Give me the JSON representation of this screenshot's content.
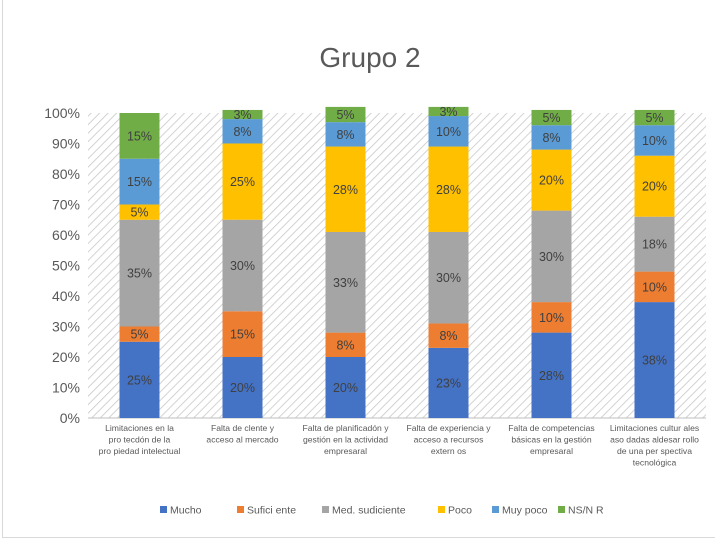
{
  "chart_data": {
    "type": "bar",
    "stacked": "percent",
    "title": "Grupo 2",
    "xlabel": "",
    "ylabel": "",
    "ylim": [
      0,
      100
    ],
    "yticks": [
      "0%",
      "10%",
      "20%",
      "30%",
      "40%",
      "50%",
      "60%",
      "70%",
      "80%",
      "90%",
      "100%"
    ],
    "categories": [
      [
        "Limitaciones en la",
        "pro tecdón de la",
        "pro piedad intelectual"
      ],
      [
        "Falta de clente y",
        "acceso al mercado"
      ],
      [
        "Falta de planificadón y",
        "gestión en la actividad",
        "empresaral"
      ],
      [
        "Falta de experiencia y",
        "acceso a recursos",
        "extern os"
      ],
      [
        "Falta de competencias",
        "básicas en la gestión",
        "empresaral"
      ],
      [
        "Limitaciones cultur ales",
        "aso dadas aldesar rollo",
        "de una per spectiva",
        "tecnológica"
      ]
    ],
    "series": [
      {
        "name": "Mucho",
        "color": "#4472c4",
        "values": [
          25,
          20,
          20,
          23,
          28,
          38
        ],
        "labels": [
          "25%",
          "20%",
          "20%",
          "23%",
          "28%",
          "38%"
        ]
      },
      {
        "name": "Sufici ente",
        "color": "#ed7d31",
        "values": [
          5,
          15,
          8,
          8,
          10,
          10
        ],
        "labels": [
          "5%",
          "15%",
          "8%",
          "8%",
          "10%",
          "10%"
        ]
      },
      {
        "name": "Med. sudiciente",
        "color": "#a5a5a5",
        "values": [
          35,
          30,
          33,
          30,
          30,
          18
        ],
        "labels": [
          "35%",
          "30%",
          "33%",
          "30%",
          "30%",
          "18%"
        ]
      },
      {
        "name": "Poco",
        "color": "#ffc000",
        "values": [
          5,
          25,
          28,
          28,
          20,
          20
        ],
        "labels": [
          "5%",
          "25%",
          "28%",
          "28%",
          "20%",
          "20%"
        ]
      },
      {
        "name": "Muy poco",
        "color": "#5b9bd5",
        "values": [
          15,
          8,
          8,
          10,
          8,
          10
        ],
        "labels": [
          "15%",
          "8%",
          "8%",
          "10%",
          "8%",
          "10%"
        ]
      },
      {
        "name": "NS/N R",
        "color": "#70ad47",
        "values": [
          15,
          3,
          5,
          3,
          5,
          5
        ],
        "labels": [
          "15%",
          "3%",
          "5%",
          "3%",
          "5%",
          "5%"
        ]
      }
    ],
    "grid": false,
    "background": "hatched",
    "legend_position": "bottom"
  }
}
